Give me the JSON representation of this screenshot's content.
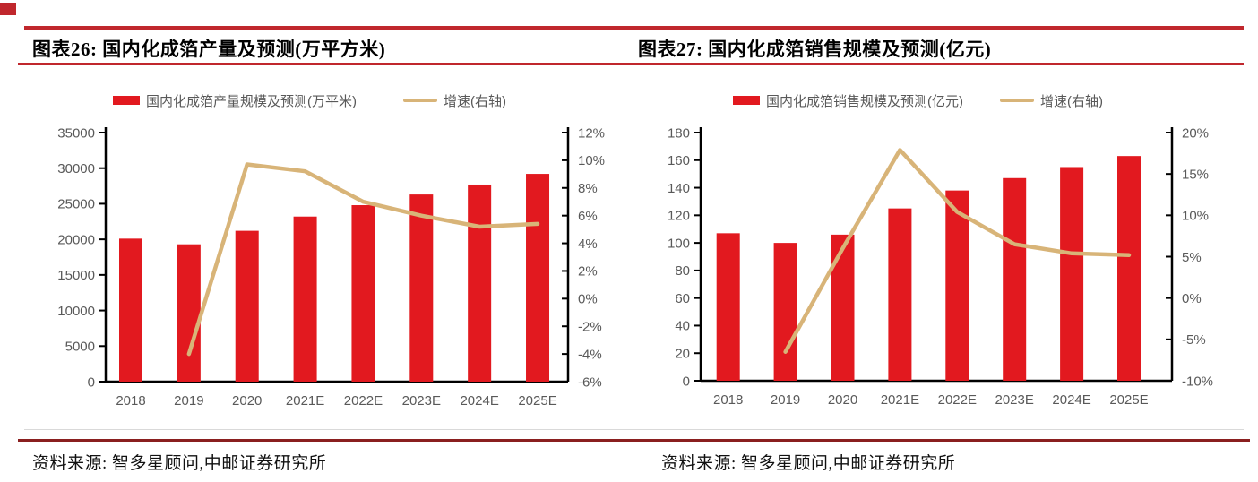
{
  "accent": {
    "rule_red": "#c0272d",
    "footer_rule_red": "#8a1f1f",
    "hairline_gray": "#d9d9d9",
    "bar_red": "#e2191f",
    "line_tan": "#d8b478",
    "axis_text_gray": "#595959",
    "title_black": "#000000"
  },
  "panels": [
    {
      "title": "图表26: 国内化成箔产量及预测(万平方米)",
      "source": "资料来源: 智多星顾问,中邮证券研究所"
    },
    {
      "title": "图表27: 国内化成箔销售规模及预测(亿元)",
      "source": "资料来源: 智多星顾问,中邮证券研究所"
    }
  ],
  "chart_data": [
    {
      "type": "bar",
      "combo": "bar+line",
      "title": "国内化成箔产量及预测(万平方米)",
      "categories": [
        "2018",
        "2019",
        "2020",
        "2021E",
        "2022E",
        "2023E",
        "2024E",
        "2025E"
      ],
      "series": [
        {
          "name": "国内化成箔产量规模及预测(万平米)",
          "type": "bar",
          "axis": "left",
          "values": [
            20100,
            19300,
            21200,
            23200,
            24800,
            26300,
            27700,
            29200
          ]
        },
        {
          "name": "增速(右轴)",
          "type": "line",
          "axis": "right",
          "unit": "%",
          "values": [
            null,
            -4.0,
            9.7,
            9.2,
            7.0,
            6.0,
            5.2,
            5.4
          ]
        }
      ],
      "left_axis": {
        "min": 0,
        "max": 35000,
        "step": 5000
      },
      "right_axis": {
        "min": -6,
        "max": 12,
        "step": 2,
        "suffix": "%"
      },
      "grid": false,
      "legend_position": "top"
    },
    {
      "type": "bar",
      "combo": "bar+line",
      "title": "国内化成箔销售规模及预测(亿元)",
      "categories": [
        "2018",
        "2019",
        "2020",
        "2021E",
        "2022E",
        "2023E",
        "2024E",
        "2025E"
      ],
      "series": [
        {
          "name": "国内化成箔销售规模及预测(亿元)",
          "type": "bar",
          "axis": "left",
          "values": [
            107,
            100,
            106,
            125,
            138,
            147,
            155,
            163
          ]
        },
        {
          "name": "增速(右轴)",
          "type": "line",
          "axis": "right",
          "unit": "%",
          "values": [
            null,
            -6.5,
            6.0,
            17.9,
            10.4,
            6.5,
            5.4,
            5.2
          ]
        }
      ],
      "left_axis": {
        "min": 0,
        "max": 180,
        "step": 20
      },
      "right_axis": {
        "min": -10,
        "max": 20,
        "step": 5,
        "suffix": "%"
      },
      "grid": false,
      "legend_position": "top"
    }
  ]
}
